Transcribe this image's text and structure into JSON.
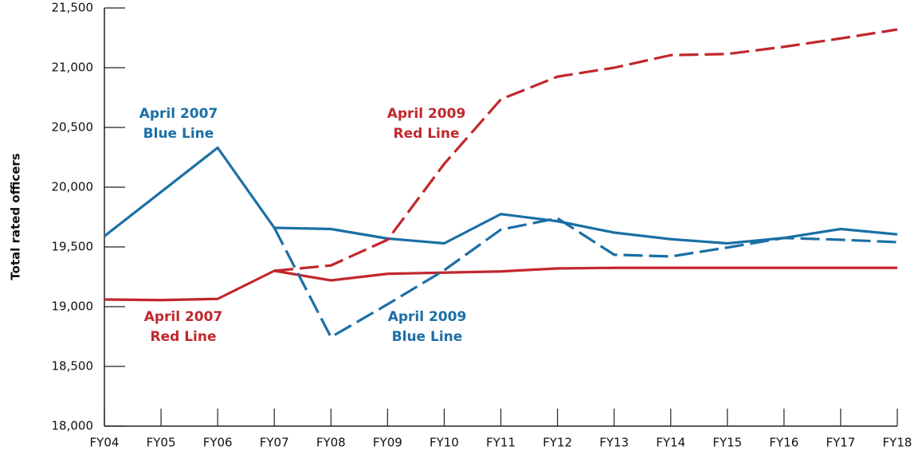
{
  "chart_data": {
    "type": "line",
    "y_label": "Total rated officers",
    "categories": [
      "FY04",
      "FY05",
      "FY06",
      "FY07",
      "FY08",
      "FY09",
      "FY10",
      "FY11",
      "FY12",
      "FY13",
      "FY14",
      "FY15",
      "FY16",
      "FY17",
      "FY18"
    ],
    "ylim": [
      18000,
      21500
    ],
    "yticks": [
      {
        "value": 18000,
        "label": "18,000"
      },
      {
        "value": 18500,
        "label": "18,500"
      },
      {
        "value": 19000,
        "label": "19,000"
      },
      {
        "value": 19500,
        "label": "19,500"
      },
      {
        "value": 20000,
        "label": "20,000"
      },
      {
        "value": 20500,
        "label": "20,500"
      },
      {
        "value": 21000,
        "label": "21,000"
      },
      {
        "value": 21500,
        "label": "21,500"
      }
    ],
    "series": [
      {
        "name": "April 2007 Blue Line",
        "color": "#1b6fa5",
        "dashed": false,
        "values": [
          19590,
          19960,
          20330,
          19660,
          19650,
          19570,
          19530,
          19775,
          19715,
          19620,
          19565,
          19530,
          19575,
          19650,
          19605
        ]
      },
      {
        "name": "April 2007 Red Line",
        "color": "#c1272d",
        "dashed": false,
        "values": [
          19060,
          19055,
          19065,
          19300,
          19220,
          19275,
          19285,
          19295,
          19320,
          19325,
          19325,
          19325,
          19325,
          19325,
          19325
        ]
      },
      {
        "name": "April 2009 Blue Line",
        "color": "#1b6fa5",
        "dashed": true,
        "values": [
          null,
          null,
          null,
          19660,
          18745,
          19020,
          19305,
          19645,
          19740,
          19435,
          19420,
          19495,
          19575,
          19560,
          19540
        ]
      },
      {
        "name": "April 2009 Red Line",
        "color": "#c1272d",
        "dashed": true,
        "values": [
          null,
          null,
          null,
          19300,
          19345,
          19560,
          20195,
          20735,
          20925,
          21000,
          21105,
          21115,
          21175,
          21245,
          21320
        ]
      }
    ],
    "annotations": [
      {
        "lines": [
          "April 2007",
          "Blue Line"
        ],
        "color": "#1b6fa5"
      },
      {
        "lines": [
          "April 2007",
          "Red Line"
        ],
        "color": "#c1272d"
      },
      {
        "lines": [
          "April 2009",
          "Blue Line"
        ],
        "color": "#1b6fa5"
      },
      {
        "lines": [
          "April 2009",
          "Red Line"
        ],
        "color": "#c1272d"
      }
    ]
  }
}
